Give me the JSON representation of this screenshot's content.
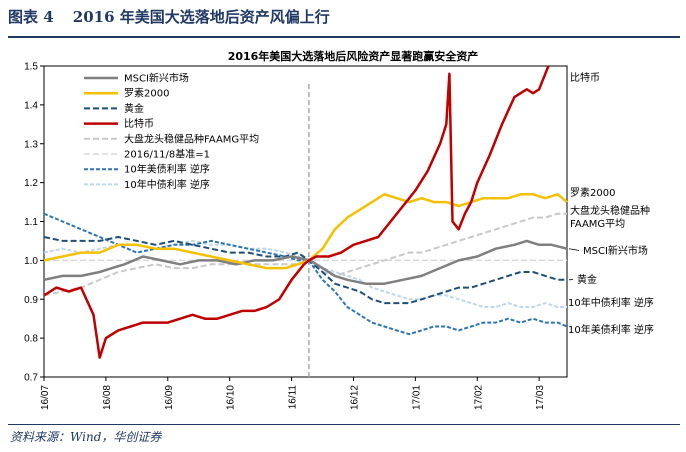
{
  "header": {
    "figure_label": "图表 4",
    "figure_title": "2016 年美国大选落地后资产风偏上行"
  },
  "source": "资料来源：Wind，华创证券",
  "chart_data": {
    "type": "line",
    "title": "2016年美国大选落地后风险资产显著跑赢安全资产",
    "ylim": [
      0.7,
      1.5
    ],
    "y_ticks": [
      "0.7",
      "0.8",
      "0.9",
      "1.0",
      "1.1",
      "1.2",
      "1.3",
      "1.4",
      "1.5"
    ],
    "x_ticks": [
      "16/07",
      "16/08",
      "16/09",
      "16/10",
      "16/11",
      "16/12",
      "17/01",
      "17/02",
      "17/03"
    ],
    "x_range_months": [
      0,
      8.45
    ],
    "marker_x": 4.28,
    "marker_label": "2016/11/8基准=1",
    "baseline": 1.0,
    "series": [
      {
        "name": "MSCI新兴市场",
        "color": "#7f7f7f",
        "dash": "",
        "width": 2.5,
        "end_label": "MSCI新兴市场",
        "points": [
          [
            0,
            0.95
          ],
          [
            0.3,
            0.96
          ],
          [
            0.6,
            0.96
          ],
          [
            0.9,
            0.97
          ],
          [
            1.1,
            0.98
          ],
          [
            1.3,
            0.99
          ],
          [
            1.6,
            1.01
          ],
          [
            1.9,
            1.0
          ],
          [
            2.2,
            0.99
          ],
          [
            2.5,
            1.0
          ],
          [
            2.8,
            1.0
          ],
          [
            3.1,
            0.99
          ],
          [
            3.4,
            1.0
          ],
          [
            3.7,
            1.0
          ],
          [
            4.0,
            1.01
          ],
          [
            4.3,
            1.0
          ],
          [
            4.5,
            0.98
          ],
          [
            4.7,
            0.96
          ],
          [
            4.9,
            0.95
          ],
          [
            5.2,
            0.94
          ],
          [
            5.5,
            0.94
          ],
          [
            5.8,
            0.95
          ],
          [
            6.1,
            0.96
          ],
          [
            6.4,
            0.98
          ],
          [
            6.7,
            1.0
          ],
          [
            7.0,
            1.01
          ],
          [
            7.3,
            1.03
          ],
          [
            7.6,
            1.04
          ],
          [
            7.8,
            1.05
          ],
          [
            8.0,
            1.04
          ],
          [
            8.2,
            1.04
          ],
          [
            8.45,
            1.03
          ]
        ]
      },
      {
        "name": "罗素2000",
        "color": "#f5c000",
        "dash": "",
        "width": 2.5,
        "end_label": "罗素2000",
        "points": [
          [
            0,
            1.0
          ],
          [
            0.3,
            1.01
          ],
          [
            0.6,
            1.02
          ],
          [
            0.9,
            1.02
          ],
          [
            1.2,
            1.04
          ],
          [
            1.5,
            1.04
          ],
          [
            1.8,
            1.03
          ],
          [
            2.1,
            1.03
          ],
          [
            2.4,
            1.02
          ],
          [
            2.7,
            1.01
          ],
          [
            3.0,
            1.0
          ],
          [
            3.3,
            0.99
          ],
          [
            3.6,
            0.98
          ],
          [
            3.9,
            0.98
          ],
          [
            4.1,
            0.99
          ],
          [
            4.28,
            1.0
          ],
          [
            4.5,
            1.03
          ],
          [
            4.7,
            1.08
          ],
          [
            4.9,
            1.11
          ],
          [
            5.1,
            1.13
          ],
          [
            5.3,
            1.15
          ],
          [
            5.5,
            1.17
          ],
          [
            5.7,
            1.16
          ],
          [
            5.9,
            1.15
          ],
          [
            6.1,
            1.16
          ],
          [
            6.3,
            1.15
          ],
          [
            6.5,
            1.15
          ],
          [
            6.7,
            1.14
          ],
          [
            6.9,
            1.15
          ],
          [
            7.1,
            1.16
          ],
          [
            7.3,
            1.16
          ],
          [
            7.5,
            1.16
          ],
          [
            7.7,
            1.17
          ],
          [
            7.9,
            1.17
          ],
          [
            8.1,
            1.16
          ],
          [
            8.3,
            1.17
          ],
          [
            8.45,
            1.15
          ]
        ]
      },
      {
        "name": "黄金",
        "color": "#1f4e79",
        "dash": "6,3",
        "width": 2,
        "end_label": "黄金",
        "points": [
          [
            0,
            1.06
          ],
          [
            0.3,
            1.05
          ],
          [
            0.6,
            1.05
          ],
          [
            0.9,
            1.05
          ],
          [
            1.2,
            1.06
          ],
          [
            1.5,
            1.05
          ],
          [
            1.8,
            1.04
          ],
          [
            2.1,
            1.05
          ],
          [
            2.4,
            1.04
          ],
          [
            2.7,
            1.03
          ],
          [
            3.0,
            1.02
          ],
          [
            3.3,
            1.02
          ],
          [
            3.6,
            1.01
          ],
          [
            3.9,
            1.01
          ],
          [
            4.1,
            1.02
          ],
          [
            4.28,
            1.0
          ],
          [
            4.5,
            0.97
          ],
          [
            4.7,
            0.94
          ],
          [
            4.9,
            0.93
          ],
          [
            5.1,
            0.92
          ],
          [
            5.3,
            0.9
          ],
          [
            5.5,
            0.89
          ],
          [
            5.7,
            0.89
          ],
          [
            5.9,
            0.89
          ],
          [
            6.1,
            0.9
          ],
          [
            6.3,
            0.91
          ],
          [
            6.5,
            0.92
          ],
          [
            6.7,
            0.93
          ],
          [
            6.9,
            0.93
          ],
          [
            7.1,
            0.94
          ],
          [
            7.3,
            0.95
          ],
          [
            7.5,
            0.96
          ],
          [
            7.7,
            0.97
          ],
          [
            7.9,
            0.97
          ],
          [
            8.1,
            0.96
          ],
          [
            8.3,
            0.95
          ],
          [
            8.45,
            0.95
          ]
        ]
      },
      {
        "name": "比特币",
        "color": "#c00000",
        "dash": "",
        "width": 2.5,
        "end_label": "比特币",
        "points": [
          [
            0,
            0.91
          ],
          [
            0.2,
            0.93
          ],
          [
            0.4,
            0.92
          ],
          [
            0.6,
            0.93
          ],
          [
            0.8,
            0.86
          ],
          [
            0.9,
            0.75
          ],
          [
            1.0,
            0.8
          ],
          [
            1.2,
            0.82
          ],
          [
            1.4,
            0.83
          ],
          [
            1.6,
            0.84
          ],
          [
            1.8,
            0.84
          ],
          [
            2.0,
            0.84
          ],
          [
            2.2,
            0.85
          ],
          [
            2.4,
            0.86
          ],
          [
            2.6,
            0.85
          ],
          [
            2.8,
            0.85
          ],
          [
            3.0,
            0.86
          ],
          [
            3.2,
            0.87
          ],
          [
            3.4,
            0.87
          ],
          [
            3.6,
            0.88
          ],
          [
            3.8,
            0.9
          ],
          [
            4.0,
            0.95
          ],
          [
            4.2,
            0.99
          ],
          [
            4.28,
            1.0
          ],
          [
            4.4,
            1.01
          ],
          [
            4.6,
            1.01
          ],
          [
            4.8,
            1.02
          ],
          [
            5.0,
            1.04
          ],
          [
            5.2,
            1.05
          ],
          [
            5.4,
            1.06
          ],
          [
            5.6,
            1.1
          ],
          [
            5.8,
            1.14
          ],
          [
            6.0,
            1.18
          ],
          [
            6.2,
            1.23
          ],
          [
            6.4,
            1.3
          ],
          [
            6.5,
            1.35
          ],
          [
            6.55,
            1.48
          ],
          [
            6.6,
            1.1
          ],
          [
            6.7,
            1.08
          ],
          [
            6.8,
            1.12
          ],
          [
            6.9,
            1.15
          ],
          [
            7.0,
            1.2
          ],
          [
            7.2,
            1.27
          ],
          [
            7.4,
            1.35
          ],
          [
            7.6,
            1.42
          ],
          [
            7.8,
            1.44
          ],
          [
            7.9,
            1.43
          ],
          [
            8.0,
            1.44
          ],
          [
            8.1,
            1.48
          ],
          [
            8.15,
            1.5
          ]
        ]
      },
      {
        "name": "大盘龙头稳健品种FAAMG平均",
        "color": "#c9c9c9",
        "dash": "6,3",
        "width": 2,
        "end_label": "大盘龙头稳健品种\nFAAMG平均",
        "points": [
          [
            0,
            0.91
          ],
          [
            0.3,
            0.92
          ],
          [
            0.6,
            0.93
          ],
          [
            0.9,
            0.95
          ],
          [
            1.2,
            0.97
          ],
          [
            1.5,
            0.98
          ],
          [
            1.8,
            0.99
          ],
          [
            2.1,
            0.98
          ],
          [
            2.4,
            0.98
          ],
          [
            2.7,
            0.99
          ],
          [
            3.0,
            0.99
          ],
          [
            3.3,
            0.99
          ],
          [
            3.6,
            0.99
          ],
          [
            3.9,
            0.99
          ],
          [
            4.1,
            0.99
          ],
          [
            4.28,
            1.0
          ],
          [
            4.5,
            0.97
          ],
          [
            4.7,
            0.96
          ],
          [
            4.9,
            0.97
          ],
          [
            5.1,
            0.98
          ],
          [
            5.3,
            0.99
          ],
          [
            5.5,
            1.0
          ],
          [
            5.7,
            1.01
          ],
          [
            5.9,
            1.02
          ],
          [
            6.1,
            1.02
          ],
          [
            6.3,
            1.03
          ],
          [
            6.5,
            1.04
          ],
          [
            6.7,
            1.05
          ],
          [
            6.9,
            1.06
          ],
          [
            7.1,
            1.07
          ],
          [
            7.3,
            1.08
          ],
          [
            7.5,
            1.09
          ],
          [
            7.7,
            1.1
          ],
          [
            7.9,
            1.11
          ],
          [
            8.1,
            1.11
          ],
          [
            8.3,
            1.12
          ],
          [
            8.45,
            1.12
          ]
        ]
      },
      {
        "name": "2016/11/8基准=1",
        "color": "#d9d9d9",
        "dash": "6,3",
        "width": 1.5,
        "end_label": "",
        "points": [
          [
            0,
            1.0
          ],
          [
            8.45,
            1.0
          ]
        ]
      },
      {
        "name": "10年美债利率 逆序",
        "color": "#2e75b6",
        "dash": "4,2",
        "width": 2,
        "end_label": "10年美债利率 逆序",
        "points": [
          [
            0,
            1.12
          ],
          [
            0.3,
            1.1
          ],
          [
            0.6,
            1.08
          ],
          [
            0.9,
            1.06
          ],
          [
            1.2,
            1.04
          ],
          [
            1.5,
            1.02
          ],
          [
            1.8,
            1.03
          ],
          [
            2.1,
            1.04
          ],
          [
            2.4,
            1.04
          ],
          [
            2.7,
            1.05
          ],
          [
            3.0,
            1.04
          ],
          [
            3.3,
            1.03
          ],
          [
            3.6,
            1.02
          ],
          [
            3.9,
            1.01
          ],
          [
            4.1,
            1.0
          ],
          [
            4.28,
            1.0
          ],
          [
            4.5,
            0.95
          ],
          [
            4.7,
            0.92
          ],
          [
            4.9,
            0.88
          ],
          [
            5.1,
            0.86
          ],
          [
            5.3,
            0.84
          ],
          [
            5.5,
            0.83
          ],
          [
            5.7,
            0.82
          ],
          [
            5.9,
            0.81
          ],
          [
            6.1,
            0.82
          ],
          [
            6.3,
            0.83
          ],
          [
            6.5,
            0.83
          ],
          [
            6.7,
            0.82
          ],
          [
            6.9,
            0.83
          ],
          [
            7.1,
            0.84
          ],
          [
            7.3,
            0.84
          ],
          [
            7.5,
            0.85
          ],
          [
            7.7,
            0.84
          ],
          [
            7.9,
            0.85
          ],
          [
            8.1,
            0.84
          ],
          [
            8.3,
            0.84
          ],
          [
            8.45,
            0.83
          ]
        ]
      },
      {
        "name": "10年中债利率 逆序",
        "color": "#bdd7ee",
        "dash": "4,2",
        "width": 2,
        "end_label": "10年中债利率 逆序",
        "points": [
          [
            0,
            1.02
          ],
          [
            0.3,
            1.03
          ],
          [
            0.6,
            1.02
          ],
          [
            0.9,
            1.03
          ],
          [
            1.2,
            1.04
          ],
          [
            1.5,
            1.04
          ],
          [
            1.8,
            1.03
          ],
          [
            2.1,
            1.04
          ],
          [
            2.4,
            1.05
          ],
          [
            2.7,
            1.04
          ],
          [
            3.0,
            1.04
          ],
          [
            3.3,
            1.03
          ],
          [
            3.6,
            1.03
          ],
          [
            3.9,
            1.02
          ],
          [
            4.1,
            1.01
          ],
          [
            4.28,
            1.0
          ],
          [
            4.5,
            0.98
          ],
          [
            4.7,
            0.97
          ],
          [
            4.9,
            0.96
          ],
          [
            5.1,
            0.95
          ],
          [
            5.3,
            0.93
          ],
          [
            5.5,
            0.92
          ],
          [
            5.7,
            0.91
          ],
          [
            5.9,
            0.9
          ],
          [
            6.1,
            0.9
          ],
          [
            6.3,
            0.91
          ],
          [
            6.5,
            0.91
          ],
          [
            6.7,
            0.9
          ],
          [
            6.9,
            0.89
          ],
          [
            7.1,
            0.88
          ],
          [
            7.3,
            0.88
          ],
          [
            7.5,
            0.89
          ],
          [
            7.7,
            0.88
          ],
          [
            7.9,
            0.88
          ],
          [
            8.1,
            0.89
          ],
          [
            8.3,
            0.88
          ],
          [
            8.45,
            0.88
          ]
        ]
      }
    ]
  }
}
